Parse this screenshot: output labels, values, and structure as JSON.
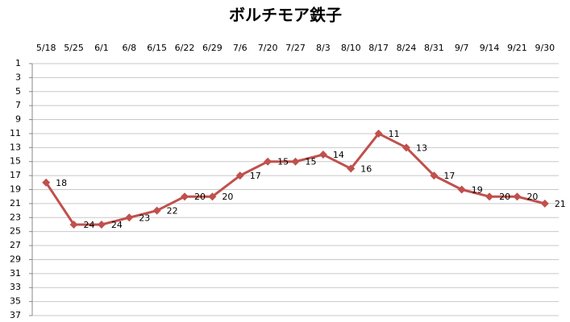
{
  "chart_data": {
    "type": "line",
    "title": "ボルチモア鉄子",
    "categories": [
      "5/18",
      "5/25",
      "6/1",
      "6/8",
      "6/15",
      "6/22",
      "6/29",
      "7/6",
      "7/20",
      "7/27",
      "8/3",
      "8/10",
      "8/17",
      "8/24",
      "8/31",
      "9/7",
      "9/14",
      "9/21",
      "9/30"
    ],
    "series": [
      {
        "color": "#c0504d",
        "values": [
          18,
          24,
          24,
          23,
          22,
          20,
          20,
          17,
          15,
          15,
          14,
          16,
          11,
          13,
          17,
          19,
          20,
          20,
          21
        ]
      }
    ],
    "ylim": [
      1,
      37
    ],
    "y_reversed": true,
    "yticks": [
      1,
      3,
      5,
      7,
      9,
      11,
      13,
      15,
      17,
      19,
      21,
      23,
      25,
      27,
      29,
      31,
      33,
      35,
      37
    ],
    "grid": true,
    "data_labels": true
  }
}
